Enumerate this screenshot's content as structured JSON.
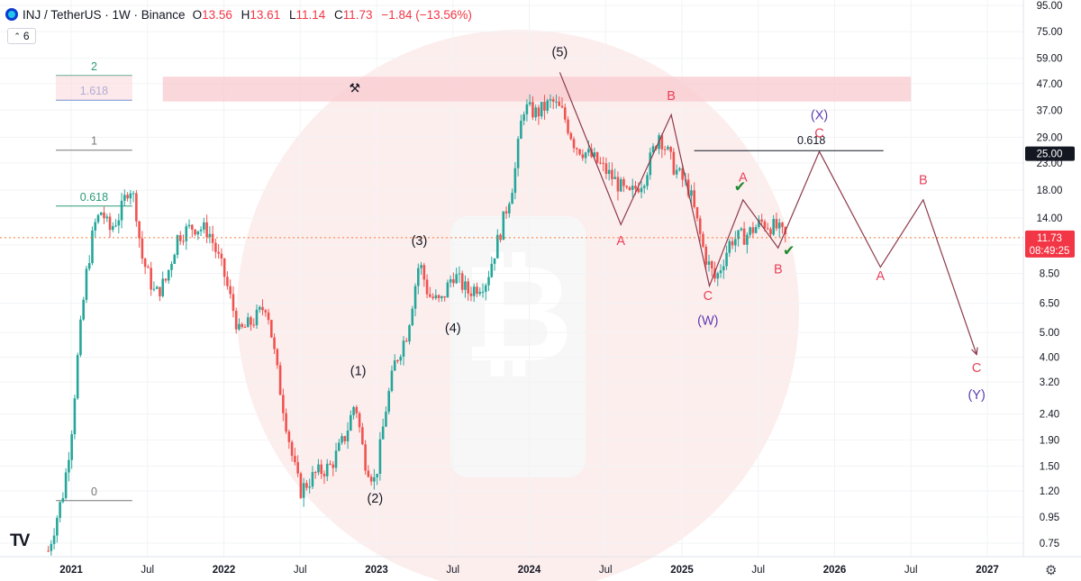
{
  "header": {
    "symbol": "INJ / TetherUS · 1W · Binance",
    "open_label": "O",
    "open": "13.56",
    "high_label": "H",
    "high": "13.61",
    "low_label": "L",
    "low": "11.14",
    "close_label": "C",
    "close": "11.73",
    "change": "−1.84 (−13.56%)",
    "indicator_count": "6"
  },
  "colors": {
    "up": "#26a69a",
    "down": "#ef5350",
    "wave_red": "#e8425a",
    "wave_purple": "#5e3bb0",
    "fib_green": "#2d9a78",
    "fib_blue": "#3e6fc4",
    "fib_gray": "#777777",
    "path": "#8c3a4a",
    "zone": "#f8c9cf",
    "current_price": "#f57c3a"
  },
  "icons": {
    "symbol": "inj-coin-icon",
    "eye": "chevron-down-icon",
    "settings": "gear-icon",
    "logo": "tradingview-logo-icon",
    "pencil": "hammer-icon",
    "watermark": "bitcoin-watermark-icon"
  },
  "chart_data": {
    "type": "candlestick",
    "log_scale": true,
    "y_ticks": [
      95,
      75,
      59,
      47,
      37,
      29,
      23,
      18,
      14,
      11,
      8.5,
      6.5,
      5,
      4,
      3.2,
      2.4,
      1.9,
      1.5,
      1.2,
      0.95,
      0.75
    ],
    "y_tick_labels": [
      "95.00",
      "75.00",
      "59.00",
      "47.00",
      "37.00",
      "29.00",
      "23.00",
      "18.00",
      "14.00",
      "",
      "8.50",
      "6.50",
      "5.00",
      "4.00",
      "3.20",
      "2.40",
      "1.90",
      "1.50",
      "1.20",
      "0.95",
      "0.75"
    ],
    "x_ticks": [
      {
        "label": "2021",
        "t": 2021.0
      },
      {
        "label": "Jul",
        "t": 2021.5
      },
      {
        "label": "2022",
        "t": 2022.0
      },
      {
        "label": "Jul",
        "t": 2022.5
      },
      {
        "label": "2023",
        "t": 2023.0
      },
      {
        "label": "Jul",
        "t": 2023.5
      },
      {
        "label": "2024",
        "t": 2024.0
      },
      {
        "label": "Jul",
        "t": 2024.5
      },
      {
        "label": "2025",
        "t": 2025.0
      },
      {
        "label": "Jul",
        "t": 2025.5
      },
      {
        "label": "2026",
        "t": 2026.0
      },
      {
        "label": "Jul",
        "t": 2026.5
      },
      {
        "label": "2027",
        "t": 2027.0
      }
    ],
    "current_price": {
      "value": 11.73,
      "label": "11.73",
      "countdown": "08:49:25"
    },
    "target_price": {
      "value": 25.0,
      "label": "25.00"
    },
    "price_path": [
      {
        "t": 2020.85,
        "v": 0.7
      },
      {
        "t": 2020.95,
        "v": 1.2
      },
      {
        "t": 2021.0,
        "v": 2.0
      },
      {
        "t": 2021.05,
        "v": 4.5
      },
      {
        "t": 2021.1,
        "v": 8.5
      },
      {
        "t": 2021.15,
        "v": 13.0
      },
      {
        "t": 2021.2,
        "v": 15.0
      },
      {
        "t": 2021.25,
        "v": 12.5
      },
      {
        "t": 2021.32,
        "v": 14.5
      },
      {
        "t": 2021.38,
        "v": 19.0
      },
      {
        "t": 2021.42,
        "v": 16.0
      },
      {
        "t": 2021.46,
        "v": 10.0
      },
      {
        "t": 2021.55,
        "v": 7.0
      },
      {
        "t": 2021.62,
        "v": 8.0
      },
      {
        "t": 2021.7,
        "v": 12.0
      },
      {
        "t": 2021.8,
        "v": 13.0
      },
      {
        "t": 2021.9,
        "v": 12.5
      },
      {
        "t": 2022.0,
        "v": 8.5
      },
      {
        "t": 2022.1,
        "v": 5.0
      },
      {
        "t": 2022.2,
        "v": 5.6
      },
      {
        "t": 2022.28,
        "v": 6.5
      },
      {
        "t": 2022.36,
        "v": 3.2
      },
      {
        "t": 2022.45,
        "v": 1.6
      },
      {
        "t": 2022.5,
        "v": 1.2
      },
      {
        "t": 2022.6,
        "v": 1.4
      },
      {
        "t": 2022.7,
        "v": 1.5
      },
      {
        "t": 2022.8,
        "v": 2.0
      },
      {
        "t": 2022.86,
        "v": 2.7
      },
      {
        "t": 2022.92,
        "v": 1.6
      },
      {
        "t": 2022.99,
        "v": 1.3
      },
      {
        "t": 2023.06,
        "v": 2.5
      },
      {
        "t": 2023.12,
        "v": 3.8
      },
      {
        "t": 2023.2,
        "v": 5.0
      },
      {
        "t": 2023.28,
        "v": 9.5
      },
      {
        "t": 2023.34,
        "v": 7.0
      },
      {
        "t": 2023.42,
        "v": 6.5
      },
      {
        "t": 2023.5,
        "v": 8.5
      },
      {
        "t": 2023.6,
        "v": 7.2
      },
      {
        "t": 2023.72,
        "v": 8.0
      },
      {
        "t": 2023.82,
        "v": 13.0
      },
      {
        "t": 2023.9,
        "v": 20.0
      },
      {
        "t": 2023.96,
        "v": 38.0
      },
      {
        "t": 2024.05,
        "v": 36.0
      },
      {
        "t": 2024.15,
        "v": 40.0
      },
      {
        "t": 2024.22,
        "v": 36.0
      },
      {
        "t": 2024.3,
        "v": 27.0
      },
      {
        "t": 2024.42,
        "v": 24.0
      },
      {
        "t": 2024.55,
        "v": 20.0
      },
      {
        "t": 2024.65,
        "v": 17.0
      },
      {
        "t": 2024.75,
        "v": 20.0
      },
      {
        "t": 2024.85,
        "v": 30.0
      },
      {
        "t": 2024.95,
        "v": 22.0
      },
      {
        "t": 2025.05,
        "v": 18.0
      },
      {
        "t": 2025.15,
        "v": 10.0
      },
      {
        "t": 2025.22,
        "v": 8.0
      },
      {
        "t": 2025.32,
        "v": 11.5
      },
      {
        "t": 2025.42,
        "v": 12.0
      },
      {
        "t": 2025.52,
        "v": 13.5
      },
      {
        "t": 2025.62,
        "v": 12.8
      },
      {
        "t": 2025.68,
        "v": 11.73
      }
    ],
    "elliott_path_1": [
      {
        "t": 2024.2,
        "v": 52.0
      },
      {
        "t": 2024.6,
        "v": 13.2
      },
      {
        "t": 2024.93,
        "v": 35.5
      },
      {
        "t": 2025.18,
        "v": 7.6
      },
      {
        "t": 2025.4,
        "v": 16.5
      },
      {
        "t": 2025.63,
        "v": 10.7
      },
      {
        "t": 2025.9,
        "v": 25.5
      },
      {
        "t": 2026.3,
        "v": 9.0
      },
      {
        "t": 2026.58,
        "v": 16.5
      },
      {
        "t": 2026.93,
        "v": 4.1
      }
    ],
    "resistance_zone": {
      "t0": 2021.6,
      "t1": 2026.5,
      "v_low": 40.0,
      "v_high": 50.0
    },
    "fib_target_line": {
      "t0": 2025.08,
      "t1": 2026.32,
      "v": 25.7,
      "label": "0.618"
    },
    "fib_levels": [
      {
        "label": "2",
        "v": 50.5,
        "t0": 2020.9,
        "t1": 2021.4,
        "color": "fib_green"
      },
      {
        "label": "1.618",
        "v": 40.5,
        "t0": 2020.9,
        "t1": 2021.4,
        "color": "fib_blue"
      },
      {
        "label": "1",
        "v": 25.8,
        "t0": 2020.9,
        "t1": 2021.4,
        "color": "fib_gray"
      },
      {
        "label": "0.618",
        "v": 15.6,
        "t0": 2020.9,
        "t1": 2021.4,
        "color": "fib_green"
      },
      {
        "label": "0",
        "v": 1.1,
        "t0": 2020.9,
        "t1": 2021.4,
        "color": "fib_gray"
      }
    ],
    "wave_labels": [
      {
        "text": "(1)",
        "t": 2022.88,
        "v": 3.4,
        "color": "#131722"
      },
      {
        "text": "(2)",
        "t": 2022.99,
        "v": 1.08,
        "color": "#131722"
      },
      {
        "text": "(3)",
        "t": 2023.28,
        "v": 11.0,
        "color": "#131722"
      },
      {
        "text": "(4)",
        "t": 2023.5,
        "v": 5.0,
        "color": "#131722"
      },
      {
        "text": "(5)",
        "t": 2024.2,
        "v": 60.0,
        "color": "#131722"
      },
      {
        "text": "A",
        "t": 2024.6,
        "v": 11.0,
        "color": "#e8425a"
      },
      {
        "text": "B",
        "t": 2024.93,
        "v": 40.5,
        "color": "#e8425a"
      },
      {
        "text": "C",
        "t": 2025.17,
        "v": 6.7,
        "color": "#e8425a"
      },
      {
        "text": "(W)",
        "t": 2025.17,
        "v": 5.35,
        "color": "#5e3bb0"
      },
      {
        "text": "A",
        "t": 2025.4,
        "v": 19.5,
        "color": "#e8425a"
      },
      {
        "text": "B",
        "t": 2025.63,
        "v": 8.5,
        "color": "#e8425a"
      },
      {
        "text": "(X)",
        "t": 2025.9,
        "v": 34.0,
        "color": "#5e3bb0"
      },
      {
        "text": "C",
        "t": 2025.9,
        "v": 29.0,
        "color": "#e8425a"
      },
      {
        "text": "A",
        "t": 2026.3,
        "v": 8.0,
        "color": "#e8425a"
      },
      {
        "text": "B",
        "t": 2026.58,
        "v": 19.0,
        "color": "#e8425a"
      },
      {
        "text": "C",
        "t": 2026.93,
        "v": 3.5,
        "color": "#e8425a"
      },
      {
        "text": "(Y)",
        "t": 2026.93,
        "v": 2.75,
        "color": "#5e3bb0"
      }
    ],
    "checkmarks": [
      {
        "t": 2025.38,
        "v": 17.8
      },
      {
        "t": 2025.7,
        "v": 10.0
      }
    ]
  }
}
